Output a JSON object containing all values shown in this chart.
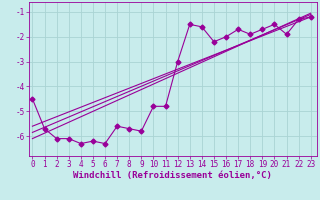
{
  "xlabel": "Windchill (Refroidissement éolien,°C)",
  "bg_color": "#c8ecec",
  "line_color": "#990099",
  "grid_color": "#aad4d4",
  "scatter_x": [
    0,
    1,
    2,
    3,
    4,
    5,
    6,
    7,
    8,
    9,
    10,
    11,
    12,
    13,
    14,
    15,
    16,
    17,
    18,
    19,
    20,
    21,
    22,
    23
  ],
  "scatter_y": [
    -4.5,
    -5.7,
    -6.1,
    -6.1,
    -6.3,
    -6.2,
    -6.3,
    -5.6,
    -5.7,
    -5.8,
    -4.8,
    -4.8,
    -3.0,
    -1.5,
    -1.6,
    -2.2,
    -2.0,
    -1.7,
    -1.9,
    -1.7,
    -1.5,
    -1.9,
    -1.3,
    -1.2
  ],
  "reg_line_x": [
    0,
    23
  ],
  "reg_line1_y": [
    -6.1,
    -1.05
  ],
  "reg_line2_y": [
    -5.85,
    -1.1
  ],
  "reg_line3_y": [
    -5.6,
    -1.2
  ],
  "xlim": [
    -0.3,
    23.5
  ],
  "ylim": [
    -6.8,
    -0.6
  ],
  "yticks": [
    -6,
    -5,
    -4,
    -3,
    -2,
    -1
  ],
  "xticks": [
    0,
    1,
    2,
    3,
    4,
    5,
    6,
    7,
    8,
    9,
    10,
    11,
    12,
    13,
    14,
    15,
    16,
    17,
    18,
    19,
    20,
    21,
    22,
    23
  ],
  "tick_fontsize": 5.5,
  "xlabel_fontsize": 6.5,
  "marker": "D",
  "marker_size": 2.5,
  "line_width": 0.8
}
